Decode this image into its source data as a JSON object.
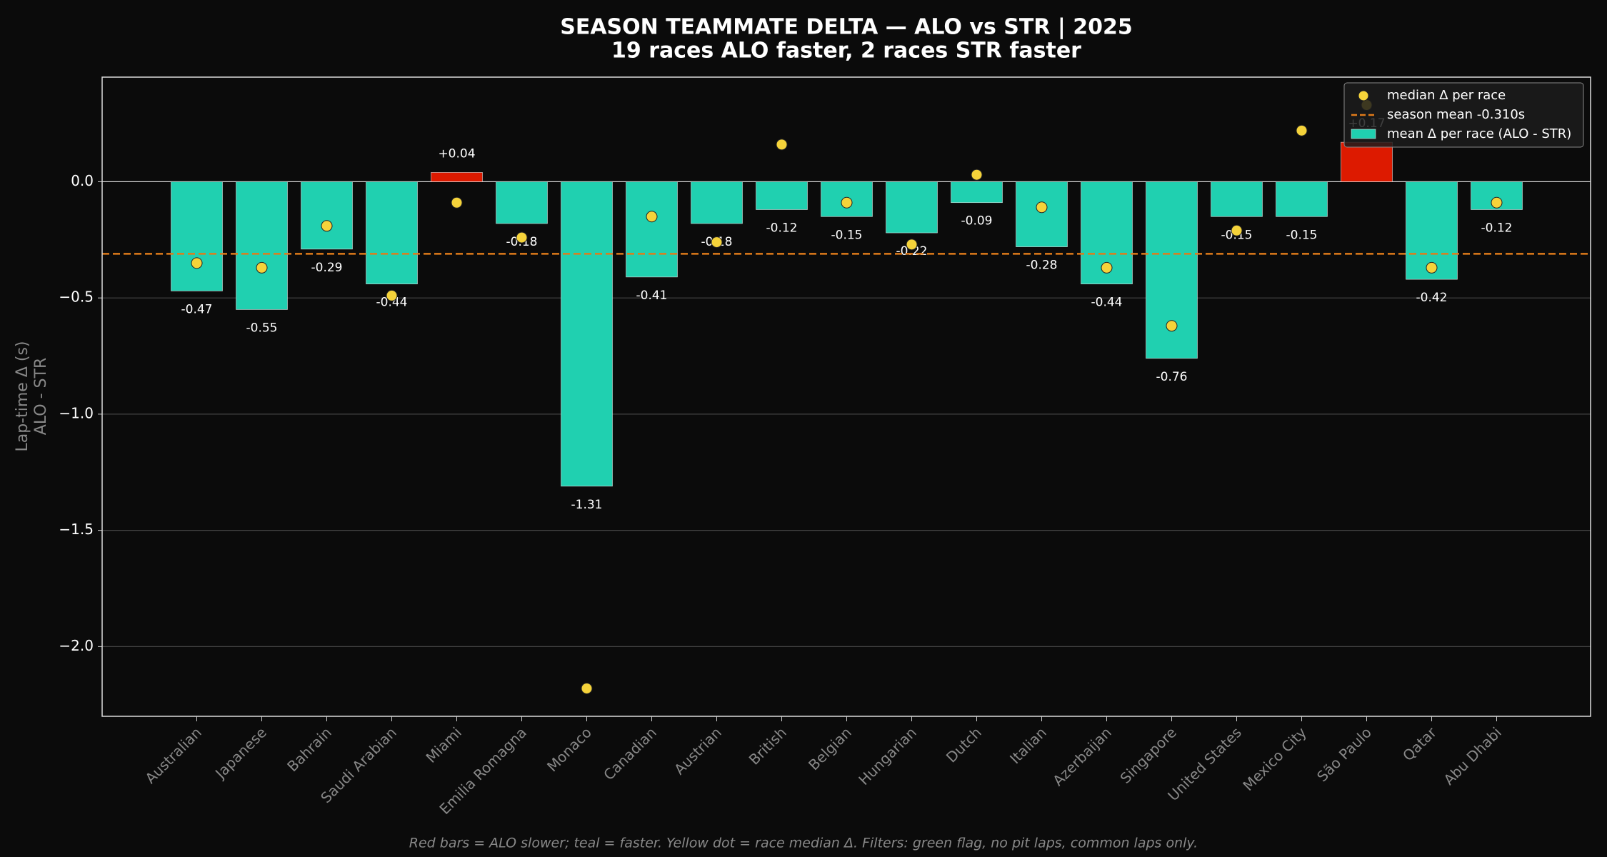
{
  "chart_data": {
    "type": "bar",
    "title": "SEASON TEAMMATE DELTA — ALO vs STR | 2025",
    "subtitle": "19 races ALO faster, 2 races STR faster",
    "y_label": [
      "Lap-time Δ (s)",
      "ALO - STR"
    ],
    "footnote": "Red bars = ALO slower; teal = faster. Yellow dot = race median Δ. Filters: green flag, no pit laps, common laps only.",
    "categories": [
      "Australian",
      "Japanese",
      "Bahrain",
      "Saudi Arabian",
      "Miami",
      "Emilia Romagna",
      "Monaco",
      "Canadian",
      "Austrian",
      "British",
      "Belgian",
      "Hungarian",
      "Dutch",
      "Italian",
      "Azerbaijan",
      "Singapore",
      "United States",
      "Mexico City",
      "São Paulo",
      "Qatar",
      "Abu Dhabi"
    ],
    "series": [
      {
        "name": "mean Δ per race (ALO - STR)",
        "type": "bar",
        "color": "#20d0b0",
        "positive_color": "#dd1a00",
        "values": [
          -0.47,
          -0.55,
          -0.29,
          -0.44,
          0.04,
          -0.18,
          -1.31,
          -0.41,
          -0.18,
          -0.12,
          -0.15,
          -0.22,
          -0.09,
          -0.28,
          -0.44,
          -0.76,
          -0.15,
          -0.15,
          0.17,
          -0.42,
          -0.12
        ],
        "value_labels": [
          "-0.47",
          "-0.55",
          "-0.29",
          "-0.44",
          "+0.04",
          "-0.18",
          "-1.31",
          "-0.41",
          "-0.18",
          "-0.12",
          "-0.15",
          "-0.22",
          "-0.09",
          "-0.28",
          "-0.44",
          "-0.76",
          "-0.15",
          "-0.15",
          "+0.17",
          "-0.42",
          "-0.12"
        ]
      },
      {
        "name": "median Δ per race",
        "type": "scatter",
        "color": "#f5d33a",
        "values": [
          -0.35,
          -0.37,
          -0.19,
          -0.49,
          -0.09,
          -0.24,
          -2.18,
          -0.15,
          -0.26,
          0.16,
          -0.09,
          -0.27,
          0.03,
          -0.11,
          -0.37,
          -0.62,
          -0.21,
          0.22,
          0.33,
          -0.37,
          -0.09
        ]
      }
    ],
    "mean_line": {
      "name": "season mean -0.310s",
      "value": -0.31,
      "color": "#e07b1a"
    },
    "ylim": [
      -2.3,
      0.45
    ],
    "yticks": [
      {
        "value": -2.0,
        "label": "−2.0"
      },
      {
        "value": -1.5,
        "label": "−1.5"
      },
      {
        "value": -1.0,
        "label": "−1.0"
      },
      {
        "value": -0.5,
        "label": "−0.5"
      },
      {
        "value": 0,
        "label": "0.0"
      }
    ],
    "grid": true,
    "legend": "upper right"
  }
}
